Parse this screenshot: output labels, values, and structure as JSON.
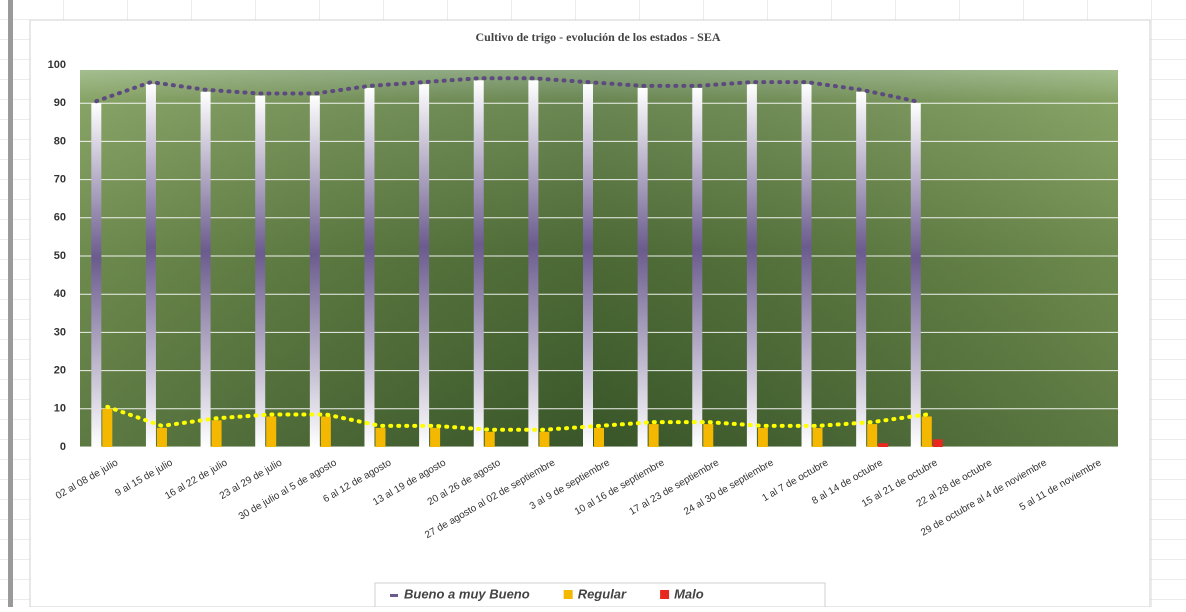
{
  "chart_data": {
    "type": "bar",
    "title": "Cultivo de trigo - evolución de los estados - SEA",
    "categories": [
      "02 al 08 de julio",
      "9 al 15 de julio",
      "16 al 22 de julio",
      "23 al 29 de julio",
      "30 de julio al 5 de agosto",
      "6 al 12 de agosto",
      "13 al 19 de agosto",
      "20 al 26 de agosto",
      "27 de agosto al 02 de septiembre",
      "3 al 9 de septiembre",
      "10 al 16 de septiembre",
      "17 al 23 de septiembre",
      "24 al 30 de septiembre",
      "1 al 7 de octubre",
      "8 al 14 de octubre",
      "15 al 21 de octubre",
      "22 al 28 de octubre",
      "29 de octubre al 4 de noviembre",
      "5 al 11 de noviembre"
    ],
    "series": [
      {
        "name": "Bueno a muy Bueno",
        "color": "#6b5b8e",
        "trend_color": "#5c4a80",
        "values": [
          90,
          95,
          93,
          92,
          92,
          94,
          95,
          96,
          96,
          95,
          94,
          94,
          95,
          95,
          93,
          90,
          null,
          null,
          null
        ]
      },
      {
        "name": "Regular",
        "color": "#f5b800",
        "trend_color": "#ffff00",
        "values": [
          10,
          5,
          7,
          8,
          8,
          5,
          5,
          4,
          4,
          5,
          6,
          6,
          5,
          5,
          6,
          8,
          null,
          null,
          null
        ]
      },
      {
        "name": "Malo",
        "color": "#e8281e",
        "values": [
          0,
          0,
          0,
          0,
          0,
          0,
          0,
          0,
          0,
          0,
          0,
          0,
          0,
          0,
          1,
          2,
          null,
          null,
          null
        ]
      }
    ],
    "ylim": [
      0,
      100
    ],
    "yticks": [
      0,
      10,
      20,
      30,
      40,
      50,
      60,
      70,
      80,
      90,
      100
    ],
    "grid": true,
    "legend": "bottom"
  }
}
